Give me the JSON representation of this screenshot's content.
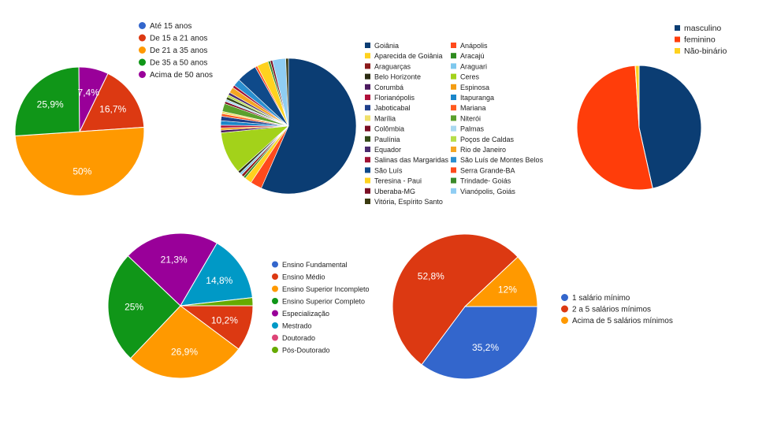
{
  "chart_data": [
    {
      "type": "pie",
      "title": "",
      "categories": [
        "Até 15 anos",
        "De 15 a 21 anos",
        "De 21 a 35 anos",
        "De 35 a 50 anos",
        "Acima de 50 anos"
      ],
      "values": [
        0,
        16.7,
        50,
        25.9,
        7.4
      ],
      "labels": [
        "",
        "16,7%",
        "50%",
        "25,9%",
        "7,4%"
      ],
      "colors": [
        "#3366cc",
        "#dc3912",
        "#ff9900",
        "#109618",
        "#990099"
      ],
      "legend": "right"
    },
    {
      "type": "pie",
      "title": "",
      "categories": [
        "Goiânia",
        "Anápolis",
        "Aparecida de Goiânia",
        "Aracajú",
        "Araguarças",
        "Araguari",
        "Belo Horizonte",
        "Ceres",
        "Corumbá",
        "Espinosa",
        "Florianópolis",
        "Itapuranga",
        "Jaboticabal",
        "Mariana",
        "Marília",
        "Niterói",
        "Colômbia",
        "Palmas",
        "Paulínia",
        "Poços de Caldas",
        "Equador",
        "Rio de Janeiro",
        "Salinas das Margaridas",
        "São Luís de Montes Belos",
        "São Luís",
        "Serra Grande-BA",
        "Teresina - Paui",
        "Trindade- Goiás",
        "Uberaba-MG",
        "Vianópolis, Goiás",
        "Vitória, Espírito Santo"
      ],
      "values": [
        53.4,
        2.6,
        1.6,
        0.5,
        0.6,
        0.5,
        0.6,
        9.5,
        0.6,
        0.5,
        0.6,
        1.0,
        1.0,
        0.6,
        0.5,
        1.8,
        0.5,
        0.5,
        0.6,
        0.5,
        0.6,
        1.3,
        0.6,
        1.6,
        4.6,
        0.5,
        2.6,
        0.5,
        0.5,
        3.0,
        0.6
      ],
      "colors": [
        "#0b3d73",
        "#ff4a1c",
        "#ffd21e",
        "#2e8b1e",
        "#8b1a1a",
        "#7ec8ee",
        "#2b2b12",
        "#a3d21a",
        "#4b1a5e",
        "#f39c12",
        "#b0103a",
        "#1a86c9",
        "#1f3f8a",
        "#ff5a1e",
        "#f0e06a",
        "#5aa02c",
        "#7a0b22",
        "#a9d8f0",
        "#334a16",
        "#b6de4a",
        "#4a2a6e",
        "#f5a623",
        "#a01234",
        "#2a8fd0",
        "#0f4a8a",
        "#ff4a1c",
        "#ffd21e",
        "#3a8a2a",
        "#7a0f24",
        "#8fcdf3",
        "#3a3a10"
      ],
      "legend": "right"
    },
    {
      "type": "pie",
      "title": "",
      "categories": [
        "masculino",
        "feminino",
        "Não-binário"
      ],
      "values": [
        46.5,
        52.5,
        1.0
      ],
      "colors": [
        "#0b3d73",
        "#ff3d0a",
        "#ffd21e"
      ],
      "legend": "top-right"
    },
    {
      "type": "pie",
      "title": "",
      "categories": [
        "Ensino Fundamental",
        "Ensino Médio",
        "Ensino Superior Incompleto",
        "Ensino Superior Completo",
        "Especialização",
        "Mestrado",
        "Doutorado",
        "Pós-Doutorado"
      ],
      "values": [
        0,
        10.2,
        26.9,
        25,
        21.3,
        14.8,
        0,
        1.8
      ],
      "labels": [
        "",
        "10,2%",
        "26,9%",
        "25%",
        "21,3%",
        "14,8%",
        "",
        ""
      ],
      "colors": [
        "#3366cc",
        "#dc3912",
        "#ff9900",
        "#109618",
        "#990099",
        "#0099c6",
        "#dd4477",
        "#66aa00"
      ],
      "legend": "right"
    },
    {
      "type": "pie",
      "title": "",
      "categories": [
        "1 salário mínimo",
        "2 a 5 salários mínimos",
        "Acima de 5 salários mínimos"
      ],
      "values": [
        35.2,
        52.8,
        12
      ],
      "labels": [
        "35,2%",
        "52,8%",
        "12%"
      ],
      "colors": [
        "#3366cc",
        "#dc3912",
        "#ff9900"
      ],
      "legend": "right"
    }
  ]
}
